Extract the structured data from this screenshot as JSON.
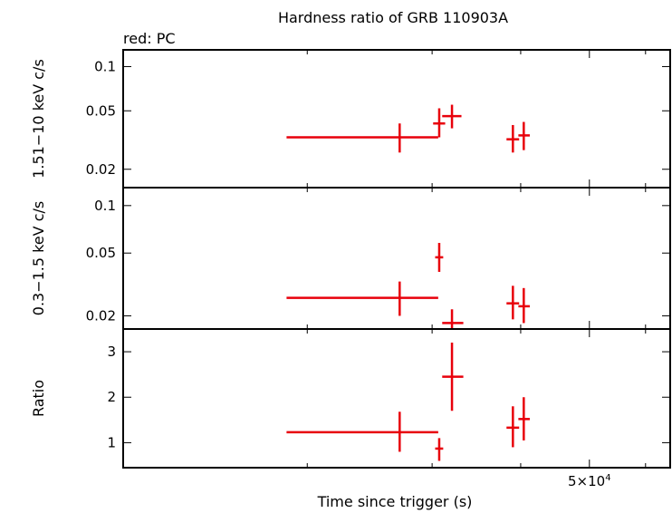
{
  "chart_data": {
    "type": "scatter",
    "title": "Hardness ratio of GRB 110903A",
    "legend_text": "red: PC",
    "xlabel": "Time since trigger (s)",
    "x_scale": "log",
    "x_range": [
      11000,
      65000
    ],
    "x_tick_labels": [
      {
        "value": 50000,
        "mantissa": "5×10",
        "exponent": "4"
      }
    ],
    "series_color": "#e8000b",
    "panels": [
      {
        "ylabel": "1.51−10 keV c/s",
        "y_scale": "log",
        "y_range": [
          0.015,
          0.13
        ],
        "y_ticks": [
          {
            "value": 0.02,
            "label": "0.02"
          },
          {
            "value": 0.05,
            "label": "0.05"
          },
          {
            "value": 0.1,
            "label": "0.1"
          }
        ],
        "points": [
          {
            "x": 27000,
            "x_lo": 18700,
            "x_hi": 30600,
            "y": 0.033,
            "y_lo": 0.026,
            "y_hi": 0.041
          },
          {
            "x": 30700,
            "x_lo": 30100,
            "x_hi": 31300,
            "y": 0.041,
            "y_lo": 0.033,
            "y_hi": 0.052
          },
          {
            "x": 32000,
            "x_lo": 31000,
            "x_hi": 33000,
            "y": 0.046,
            "y_lo": 0.038,
            "y_hi": 0.055
          },
          {
            "x": 39000,
            "x_lo": 38200,
            "x_hi": 39800,
            "y": 0.032,
            "y_lo": 0.026,
            "y_hi": 0.04
          },
          {
            "x": 40400,
            "x_lo": 39700,
            "x_hi": 41200,
            "y": 0.034,
            "y_lo": 0.027,
            "y_hi": 0.042
          }
        ]
      },
      {
        "ylabel": "0.3−1.5 keV c/s",
        "y_scale": "log",
        "y_range": [
          0.0165,
          0.13
        ],
        "y_ticks": [
          {
            "value": 0.02,
            "label": "0.02"
          },
          {
            "value": 0.05,
            "label": "0.05"
          },
          {
            "value": 0.1,
            "label": "0.1"
          }
        ],
        "points": [
          {
            "x": 27000,
            "x_lo": 18700,
            "x_hi": 30600,
            "y": 0.026,
            "y_lo": 0.02,
            "y_hi": 0.033
          },
          {
            "x": 30700,
            "x_lo": 30300,
            "x_hi": 31100,
            "y": 0.047,
            "y_lo": 0.038,
            "y_hi": 0.058
          },
          {
            "x": 32000,
            "x_lo": 31000,
            "x_hi": 33200,
            "y": 0.018,
            "y_lo": 0.0165,
            "y_hi": 0.022
          },
          {
            "x": 39000,
            "x_lo": 38200,
            "x_hi": 39800,
            "y": 0.024,
            "y_lo": 0.019,
            "y_hi": 0.031
          },
          {
            "x": 40400,
            "x_lo": 39700,
            "x_hi": 41200,
            "y": 0.023,
            "y_lo": 0.018,
            "y_hi": 0.03
          }
        ]
      },
      {
        "ylabel": "Ratio",
        "y_scale": "linear",
        "y_range": [
          0.45,
          3.5
        ],
        "y_ticks": [
          {
            "value": 1,
            "label": "1"
          },
          {
            "value": 2,
            "label": "2"
          },
          {
            "value": 3,
            "label": "3"
          }
        ],
        "points": [
          {
            "x": 27000,
            "x_lo": 18700,
            "x_hi": 30600,
            "y": 1.23,
            "y_lo": 0.8,
            "y_hi": 1.68
          },
          {
            "x": 30700,
            "x_lo": 30300,
            "x_hi": 31100,
            "y": 0.87,
            "y_lo": 0.6,
            "y_hi": 1.1
          },
          {
            "x": 32000,
            "x_lo": 31000,
            "x_hi": 33200,
            "y": 2.45,
            "y_lo": 1.7,
            "y_hi": 3.2
          },
          {
            "x": 39000,
            "x_lo": 38200,
            "x_hi": 39800,
            "y": 1.33,
            "y_lo": 0.9,
            "y_hi": 1.8
          },
          {
            "x": 40400,
            "x_lo": 39700,
            "x_hi": 41200,
            "y": 1.52,
            "y_lo": 1.05,
            "y_hi": 2.0
          }
        ]
      }
    ]
  }
}
